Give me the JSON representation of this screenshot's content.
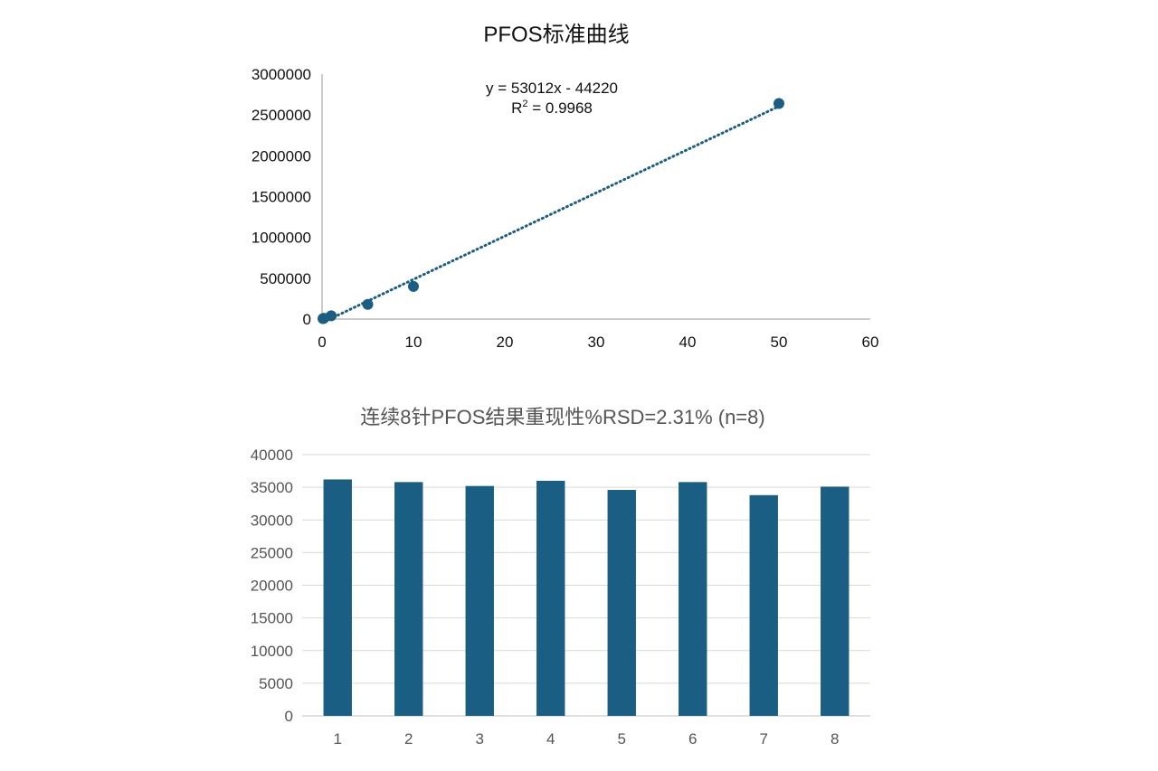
{
  "colors": {
    "series": "#1b5e83",
    "axis1": "#999999",
    "grid2": "#d9d9d9",
    "axis2": "#bfbfbf"
  },
  "chart_data": [
    {
      "type": "scatter",
      "title": "PFOS标准曲线",
      "xlabel": "",
      "ylabel": "",
      "xlim": [
        0,
        60
      ],
      "ylim": [
        0,
        3000000
      ],
      "x_ticks": [
        "0",
        "10",
        "20",
        "30",
        "40",
        "50",
        "60"
      ],
      "y_ticks": [
        "0",
        "500000",
        "1000000",
        "1500000",
        "2000000",
        "2500000",
        "3000000"
      ],
      "grid": false,
      "points": [
        {
          "x": 0.1,
          "y": 5000
        },
        {
          "x": 0.2,
          "y": 10000
        },
        {
          "x": 1,
          "y": 40000
        },
        {
          "x": 5,
          "y": 180000
        },
        {
          "x": 10,
          "y": 400000
        },
        {
          "x": 50,
          "y": 2640000
        }
      ],
      "trendline": {
        "type": "linear",
        "slope": 53012,
        "intercept": -44220,
        "style": "dotted",
        "equation_label": "y = 53012x - 44220",
        "r2_label_prefix": "R",
        "r2_label_sup": "2",
        "r2_label_value": " = 0.9968"
      }
    },
    {
      "type": "bar",
      "title": "连续8针PFOS结果重现性%RSD=2.31% (n=8)",
      "xlabel": "",
      "ylabel": "",
      "categories": [
        "1",
        "2",
        "3",
        "4",
        "5",
        "6",
        "7",
        "8"
      ],
      "values": [
        36200,
        35800,
        35200,
        36000,
        34600,
        35800,
        33800,
        35100
      ],
      "ylim": [
        0,
        40000
      ],
      "y_ticks": [
        "0",
        "5000",
        "10000",
        "15000",
        "20000",
        "25000",
        "30000",
        "35000",
        "40000"
      ],
      "grid": true
    }
  ]
}
